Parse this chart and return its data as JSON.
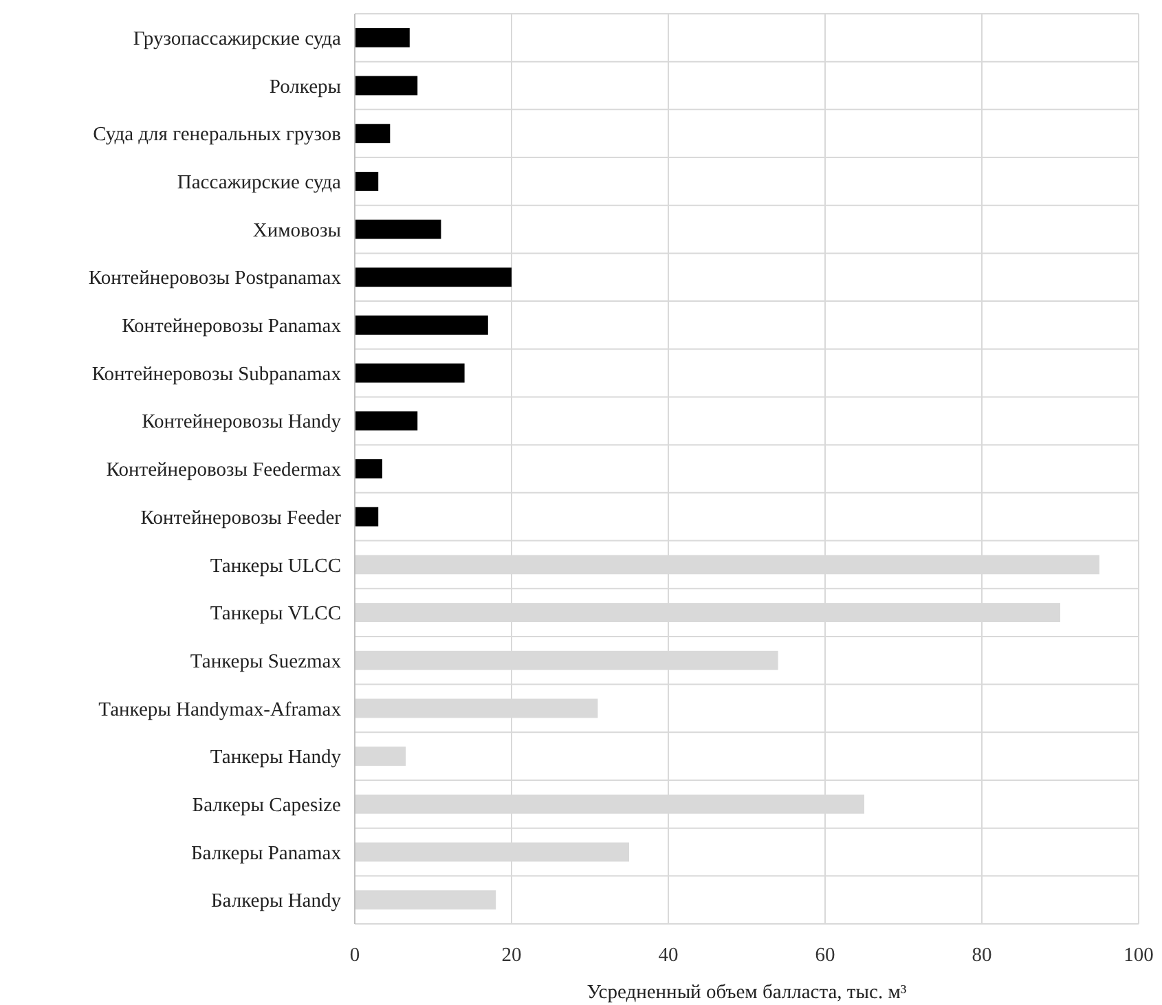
{
  "chart_data": {
    "type": "bar",
    "orientation": "horizontal",
    "xlabel": "Усредненный объем балласта, тыс. м³",
    "categories": [
      "Грузопассажирские суда",
      "Ролкеры",
      "Суда для генеральных грузов",
      "Пассажирские суда",
      "Химовозы",
      "Контейнеровозы Postpanamax",
      "Контейнеровозы Panamax",
      "Контейнеровозы Subpanamax",
      "Контейнеровозы Handy",
      "Контейнеровозы Feedermax",
      "Контейнеровозы Feeder",
      "Танкеры ULCC",
      "Танкеры VLCC",
      "Танкеры Suezmax",
      "Танкеры Handymax-Aframax",
      "Танкеры Handy",
      "Балкеры Capesize",
      "Балкеры Panamax",
      "Балкеры Handy"
    ],
    "values": [
      7,
      8,
      4.5,
      3,
      11,
      20,
      17,
      14,
      8,
      3.5,
      3,
      95,
      90,
      54,
      31,
      6.5,
      65,
      35,
      18
    ],
    "colors": [
      "#000000",
      "#000000",
      "#000000",
      "#000000",
      "#000000",
      "#000000",
      "#000000",
      "#000000",
      "#000000",
      "#000000",
      "#000000",
      "#d9d9d9",
      "#d9d9d9",
      "#d9d9d9",
      "#d9d9d9",
      "#d9d9d9",
      "#d9d9d9",
      "#d9d9d9",
      "#d9d9d9"
    ],
    "xlim": [
      0,
      100
    ],
    "xticks": [
      0,
      20,
      40,
      60,
      80,
      100
    ],
    "grid": true
  }
}
